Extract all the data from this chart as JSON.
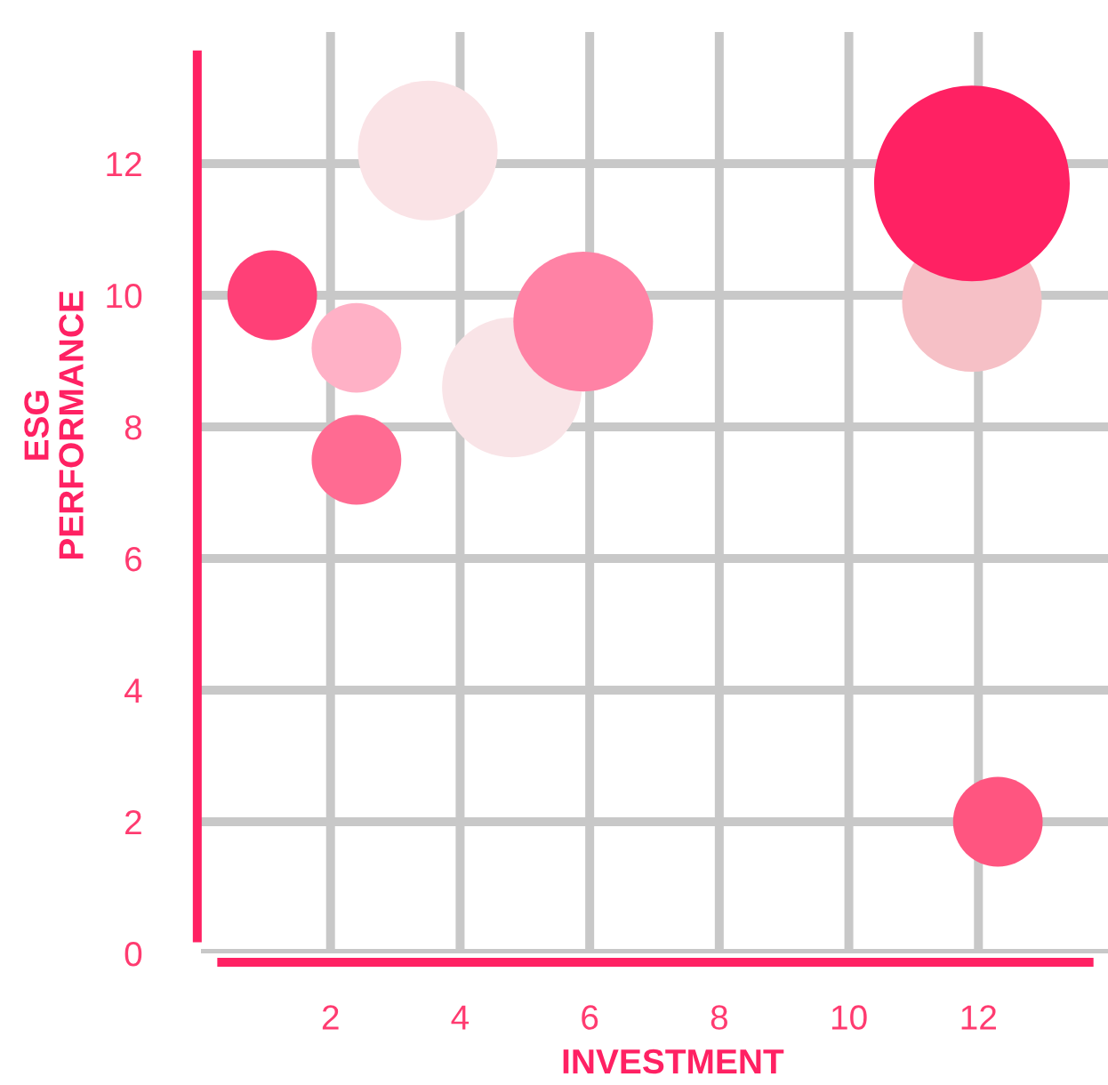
{
  "chart_data": {
    "type": "bubble",
    "xlabel": "INVESTMENT",
    "ylabel": "ESG\nPERFORMANCE",
    "x": [
      1.1,
      2.4,
      2.4,
      3.5,
      4.8,
      5.9,
      11.9,
      11.9,
      12.3
    ],
    "values": [
      10.0,
      9.2,
      7.5,
      12.2,
      8.6,
      9.6,
      9.9,
      11.7,
      2.0
    ],
    "sizes": [
      0.21,
      0.21,
      0.21,
      0.51,
      0.51,
      0.51,
      0.51,
      1.0,
      0.21
    ],
    "colors": [
      "#ff4077",
      "#ffb1c6",
      "#ff6b92",
      "#fae3e6",
      "#f9e4e7",
      "#ff82a5",
      "#f6c0c6",
      "#ff2163",
      "#ff5580"
    ],
    "xlim": [
      0,
      14
    ],
    "ylim": [
      0,
      14
    ],
    "xticks": [
      2,
      4,
      6,
      8,
      10,
      12
    ],
    "yticks": [
      0,
      2,
      4,
      6,
      8,
      10,
      12
    ],
    "grid": true,
    "marker": "circle"
  }
}
